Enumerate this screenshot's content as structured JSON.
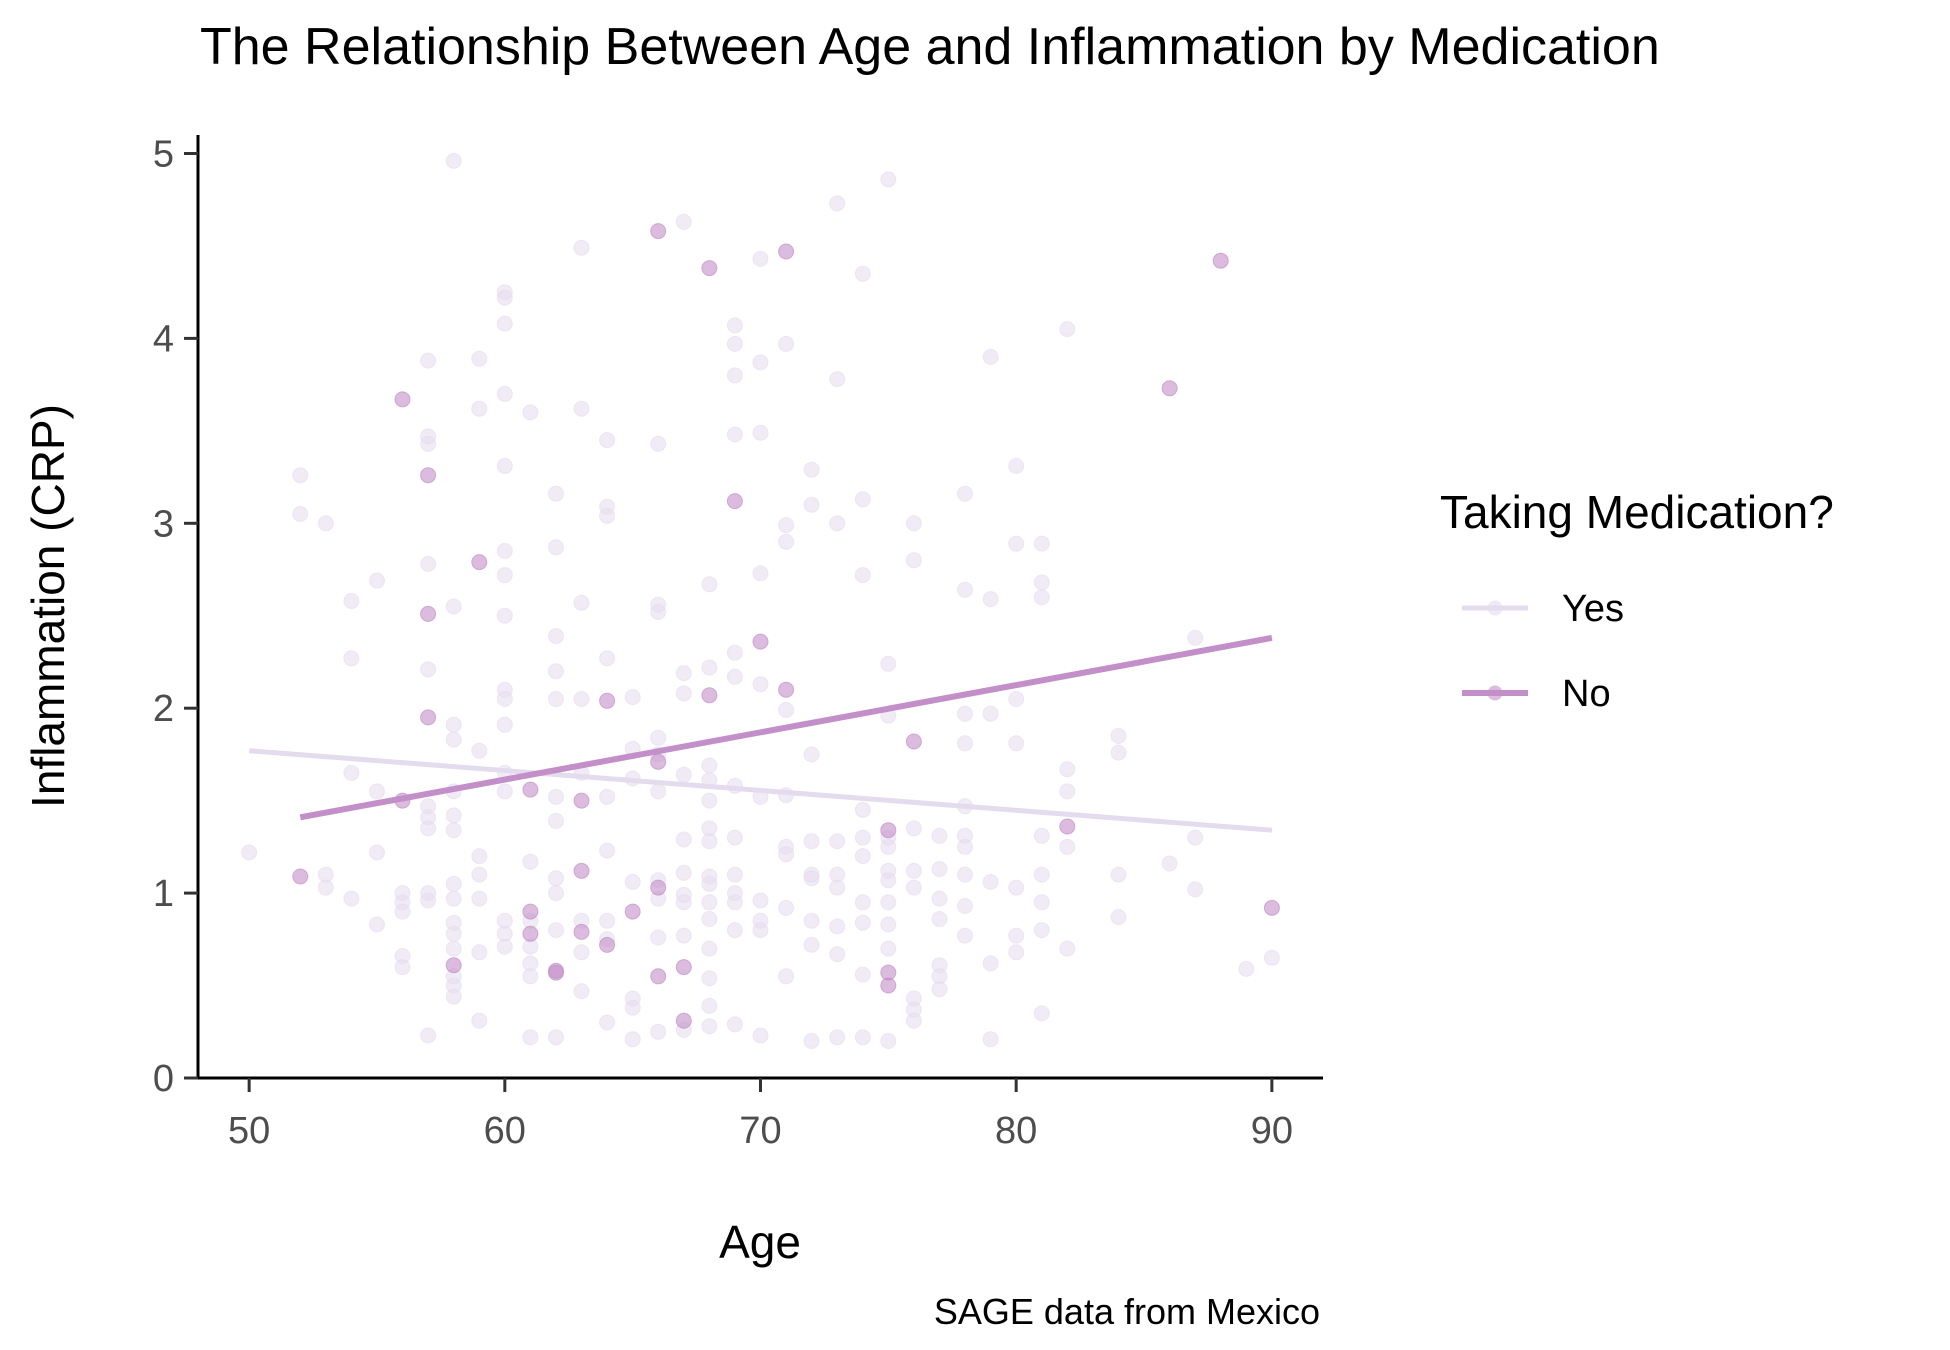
{
  "chart_data": {
    "type": "scatter",
    "title": "The Relationship Between Age and Inflammation by Medication",
    "xlabel": "Age",
    "ylabel": "Inflammation (CRP)",
    "caption": "SAGE data from Mexico",
    "xlim": [
      48,
      92
    ],
    "ylim": [
      0,
      5.1
    ],
    "x_ticks": [
      50,
      60,
      70,
      80,
      90
    ],
    "y_ticks": [
      0,
      1,
      2,
      3,
      4,
      5
    ],
    "grid": false,
    "legend": {
      "title": "Taking Medication?",
      "placement": "right"
    },
    "series": [
      {
        "name": "Yes",
        "color": "#e5dbee",
        "fit": {
          "x": [
            50,
            90
          ],
          "y": [
            1.77,
            1.34
          ]
        },
        "points": [
          [
            50,
            1.22
          ],
          [
            52,
            3.26
          ],
          [
            52,
            3.05
          ],
          [
            53,
            3.0
          ],
          [
            53,
            1.1
          ],
          [
            53,
            1.03
          ],
          [
            54,
            2.58
          ],
          [
            54,
            2.27
          ],
          [
            54,
            1.65
          ],
          [
            54,
            0.97
          ],
          [
            55,
            2.69
          ],
          [
            55,
            1.55
          ],
          [
            55,
            1.22
          ],
          [
            55,
            0.83
          ],
          [
            56,
            1.0
          ],
          [
            56,
            0.95
          ],
          [
            56,
            0.9
          ],
          [
            56,
            0.66
          ],
          [
            56,
            0.6
          ],
          [
            57,
            3.88
          ],
          [
            57,
            3.47
          ],
          [
            57,
            3.43
          ],
          [
            57,
            2.78
          ],
          [
            57,
            2.21
          ],
          [
            57,
            1.47
          ],
          [
            57,
            1.41
          ],
          [
            57,
            1.35
          ],
          [
            57,
            1.0
          ],
          [
            57,
            0.96
          ],
          [
            57,
            0.23
          ],
          [
            58,
            4.96
          ],
          [
            58,
            2.55
          ],
          [
            58,
            1.91
          ],
          [
            58,
            1.83
          ],
          [
            58,
            1.55
          ],
          [
            58,
            1.42
          ],
          [
            58,
            1.34
          ],
          [
            58,
            1.05
          ],
          [
            58,
            0.97
          ],
          [
            58,
            0.84
          ],
          [
            58,
            0.78
          ],
          [
            58,
            0.7
          ],
          [
            58,
            0.55
          ],
          [
            58,
            0.5
          ],
          [
            58,
            0.44
          ],
          [
            59,
            3.89
          ],
          [
            59,
            3.62
          ],
          [
            59,
            1.77
          ],
          [
            59,
            1.2
          ],
          [
            59,
            1.1
          ],
          [
            59,
            0.97
          ],
          [
            59,
            0.68
          ],
          [
            59,
            0.31
          ],
          [
            60,
            4.25
          ],
          [
            60,
            4.22
          ],
          [
            60,
            4.08
          ],
          [
            60,
            3.7
          ],
          [
            60,
            3.31
          ],
          [
            60,
            2.85
          ],
          [
            60,
            2.72
          ],
          [
            60,
            2.5
          ],
          [
            60,
            2.1
          ],
          [
            60,
            2.05
          ],
          [
            60,
            1.91
          ],
          [
            60,
            1.65
          ],
          [
            60,
            1.55
          ],
          [
            60,
            0.85
          ],
          [
            60,
            0.78
          ],
          [
            60,
            0.71
          ],
          [
            61,
            3.6
          ],
          [
            61,
            1.17
          ],
          [
            61,
            0.85
          ],
          [
            61,
            0.71
          ],
          [
            61,
            0.62
          ],
          [
            61,
            0.55
          ],
          [
            61,
            0.22
          ],
          [
            62,
            3.16
          ],
          [
            62,
            2.87
          ],
          [
            62,
            2.39
          ],
          [
            62,
            2.2
          ],
          [
            62,
            2.05
          ],
          [
            62,
            1.52
          ],
          [
            62,
            1.39
          ],
          [
            62,
            1.08
          ],
          [
            62,
            1.0
          ],
          [
            62,
            0.8
          ],
          [
            62,
            0.22
          ],
          [
            63,
            4.49
          ],
          [
            63,
            3.62
          ],
          [
            63,
            2.57
          ],
          [
            63,
            2.05
          ],
          [
            63,
            1.65
          ],
          [
            63,
            0.85
          ],
          [
            63,
            0.68
          ],
          [
            63,
            0.47
          ],
          [
            64,
            3.45
          ],
          [
            64,
            3.09
          ],
          [
            64,
            3.04
          ],
          [
            64,
            2.27
          ],
          [
            64,
            1.52
          ],
          [
            64,
            1.23
          ],
          [
            64,
            0.85
          ],
          [
            64,
            0.75
          ],
          [
            64,
            0.3
          ],
          [
            65,
            2.06
          ],
          [
            65,
            1.78
          ],
          [
            65,
            1.62
          ],
          [
            65,
            1.06
          ],
          [
            65,
            0.43
          ],
          [
            65,
            0.38
          ],
          [
            65,
            0.21
          ],
          [
            66,
            3.43
          ],
          [
            66,
            2.56
          ],
          [
            66,
            2.52
          ],
          [
            66,
            1.84
          ],
          [
            66,
            1.75
          ],
          [
            66,
            1.55
          ],
          [
            66,
            1.07
          ],
          [
            66,
            0.97
          ],
          [
            66,
            0.76
          ],
          [
            66,
            0.25
          ],
          [
            67,
            4.63
          ],
          [
            67,
            2.19
          ],
          [
            67,
            2.08
          ],
          [
            67,
            1.64
          ],
          [
            67,
            1.29
          ],
          [
            67,
            1.11
          ],
          [
            67,
            0.99
          ],
          [
            67,
            0.95
          ],
          [
            67,
            0.77
          ],
          [
            67,
            0.26
          ],
          [
            68,
            2.67
          ],
          [
            68,
            2.22
          ],
          [
            68,
            1.69
          ],
          [
            68,
            1.61
          ],
          [
            68,
            1.5
          ],
          [
            68,
            1.35
          ],
          [
            68,
            1.28
          ],
          [
            68,
            1.09
          ],
          [
            68,
            1.05
          ],
          [
            68,
            0.95
          ],
          [
            68,
            0.86
          ],
          [
            68,
            0.7
          ],
          [
            68,
            0.54
          ],
          [
            68,
            0.39
          ],
          [
            68,
            0.28
          ],
          [
            69,
            4.07
          ],
          [
            69,
            3.97
          ],
          [
            69,
            3.8
          ],
          [
            69,
            3.48
          ],
          [
            69,
            2.3
          ],
          [
            69,
            2.17
          ],
          [
            69,
            1.58
          ],
          [
            69,
            1.3
          ],
          [
            69,
            1.1
          ],
          [
            69,
            1.0
          ],
          [
            69,
            0.95
          ],
          [
            69,
            0.8
          ],
          [
            69,
            0.29
          ],
          [
            70,
            4.43
          ],
          [
            70,
            3.87
          ],
          [
            70,
            3.49
          ],
          [
            70,
            2.73
          ],
          [
            70,
            2.13
          ],
          [
            70,
            1.52
          ],
          [
            70,
            0.96
          ],
          [
            70,
            0.85
          ],
          [
            70,
            0.8
          ],
          [
            70,
            0.23
          ],
          [
            71,
            3.97
          ],
          [
            71,
            2.99
          ],
          [
            71,
            2.9
          ],
          [
            71,
            1.99
          ],
          [
            71,
            1.53
          ],
          [
            71,
            1.25
          ],
          [
            71,
            1.21
          ],
          [
            71,
            0.92
          ],
          [
            71,
            0.55
          ],
          [
            72,
            3.29
          ],
          [
            72,
            3.1
          ],
          [
            72,
            1.75
          ],
          [
            72,
            1.28
          ],
          [
            72,
            1.1
          ],
          [
            72,
            1.08
          ],
          [
            72,
            0.85
          ],
          [
            72,
            0.72
          ],
          [
            72,
            0.2
          ],
          [
            73,
            4.73
          ],
          [
            73,
            3.78
          ],
          [
            73,
            3.0
          ],
          [
            73,
            1.28
          ],
          [
            73,
            1.1
          ],
          [
            73,
            1.03
          ],
          [
            73,
            0.82
          ],
          [
            73,
            0.67
          ],
          [
            73,
            0.22
          ],
          [
            74,
            4.35
          ],
          [
            74,
            3.13
          ],
          [
            74,
            2.72
          ],
          [
            74,
            1.45
          ],
          [
            74,
            1.3
          ],
          [
            74,
            1.2
          ],
          [
            74,
            0.95
          ],
          [
            74,
            0.84
          ],
          [
            74,
            0.56
          ],
          [
            74,
            0.22
          ],
          [
            75,
            4.86
          ],
          [
            75,
            2.24
          ],
          [
            75,
            1.96
          ],
          [
            75,
            1.3
          ],
          [
            75,
            1.25
          ],
          [
            75,
            1.12
          ],
          [
            75,
            1.07
          ],
          [
            75,
            0.95
          ],
          [
            75,
            0.83
          ],
          [
            75,
            0.7
          ],
          [
            75,
            0.2
          ],
          [
            76,
            3.0
          ],
          [
            76,
            2.8
          ],
          [
            76,
            1.35
          ],
          [
            76,
            1.12
          ],
          [
            76,
            1.03
          ],
          [
            76,
            0.43
          ],
          [
            76,
            0.37
          ],
          [
            76,
            0.31
          ],
          [
            77,
            1.31
          ],
          [
            77,
            1.13
          ],
          [
            77,
            0.97
          ],
          [
            77,
            0.86
          ],
          [
            77,
            0.61
          ],
          [
            77,
            0.55
          ],
          [
            77,
            0.48
          ],
          [
            78,
            3.16
          ],
          [
            78,
            2.64
          ],
          [
            78,
            1.97
          ],
          [
            78,
            1.81
          ],
          [
            78,
            1.47
          ],
          [
            78,
            1.31
          ],
          [
            78,
            1.25
          ],
          [
            78,
            1.1
          ],
          [
            78,
            0.93
          ],
          [
            78,
            0.77
          ],
          [
            79,
            3.9
          ],
          [
            79,
            2.59
          ],
          [
            79,
            1.97
          ],
          [
            79,
            1.06
          ],
          [
            79,
            0.62
          ],
          [
            79,
            0.21
          ],
          [
            80,
            3.31
          ],
          [
            80,
            2.89
          ],
          [
            80,
            2.05
          ],
          [
            80,
            1.81
          ],
          [
            80,
            1.03
          ],
          [
            80,
            0.77
          ],
          [
            80,
            0.68
          ],
          [
            81,
            2.89
          ],
          [
            81,
            2.68
          ],
          [
            81,
            2.6
          ],
          [
            81,
            1.31
          ],
          [
            81,
            1.1
          ],
          [
            81,
            0.95
          ],
          [
            81,
            0.8
          ],
          [
            81,
            0.35
          ],
          [
            82,
            4.05
          ],
          [
            82,
            1.67
          ],
          [
            82,
            1.55
          ],
          [
            82,
            1.25
          ],
          [
            82,
            0.7
          ],
          [
            84,
            1.85
          ],
          [
            84,
            1.76
          ],
          [
            84,
            1.1
          ],
          [
            84,
            0.87
          ],
          [
            86,
            1.16
          ],
          [
            87,
            2.38
          ],
          [
            87,
            1.3
          ],
          [
            87,
            1.02
          ],
          [
            89,
            0.59
          ],
          [
            90,
            0.65
          ]
        ]
      },
      {
        "name": "No",
        "color": "#c38fc8",
        "fit": {
          "x": [
            52,
            90
          ],
          "y": [
            1.41,
            2.38
          ]
        },
        "points": [
          [
            52,
            1.09
          ],
          [
            56,
            3.67
          ],
          [
            56,
            1.5
          ],
          [
            57,
            3.26
          ],
          [
            57,
            2.51
          ],
          [
            57,
            1.95
          ],
          [
            58,
            0.61
          ],
          [
            59,
            2.79
          ],
          [
            61,
            0.9
          ],
          [
            61,
            0.78
          ],
          [
            61,
            1.56
          ],
          [
            62,
            0.58
          ],
          [
            62,
            0.57
          ],
          [
            63,
            1.5
          ],
          [
            63,
            1.12
          ],
          [
            63,
            0.79
          ],
          [
            64,
            2.04
          ],
          [
            64,
            0.72
          ],
          [
            65,
            0.9
          ],
          [
            66,
            4.58
          ],
          [
            66,
            1.71
          ],
          [
            66,
            0.55
          ],
          [
            66,
            1.03
          ],
          [
            67,
            0.6
          ],
          [
            67,
            0.31
          ],
          [
            68,
            4.38
          ],
          [
            68,
            2.07
          ],
          [
            69,
            3.12
          ],
          [
            70,
            2.36
          ],
          [
            71,
            4.47
          ],
          [
            71,
            2.1
          ],
          [
            75,
            1.34
          ],
          [
            75,
            0.57
          ],
          [
            75,
            0.5
          ],
          [
            76,
            1.82
          ],
          [
            82,
            1.36
          ],
          [
            86,
            3.73
          ],
          [
            88,
            4.42
          ],
          [
            90,
            0.92
          ]
        ]
      }
    ]
  }
}
